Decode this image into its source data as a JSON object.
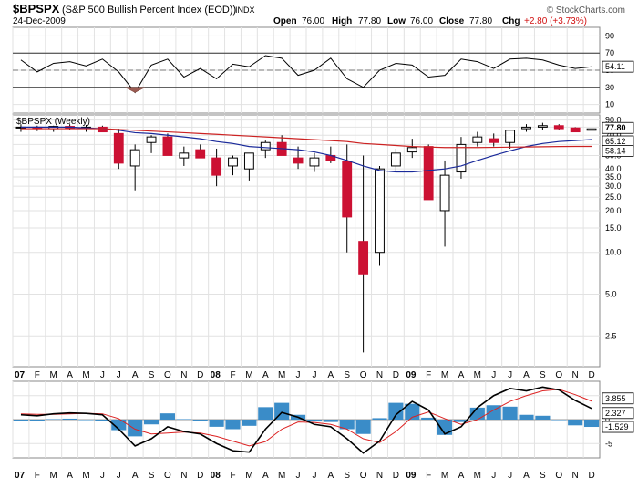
{
  "header": {
    "symbol": "$BPSPX",
    "name": "(S&P 500 Bullish Percent Index (EOD))",
    "exchange": "INDX",
    "date": "24-Dec-2009",
    "watermark": "© StockCharts.com",
    "quote": {
      "open_label": "Open",
      "open": "76.00",
      "high_label": "High",
      "high": "77.80",
      "low_label": "Low",
      "low": "76.00",
      "close_label": "Close",
      "close": "77.80",
      "chg_label": "Chg",
      "chg": "+2.80 (+3.73%)",
      "chg_color": "#d11010"
    }
  },
  "colors": {
    "up_candle": "#ffffff",
    "down_candle": "#cc1133",
    "ma_long": "#cc2222",
    "ma_short": "#1a2a9a",
    "macd_line": "#000000",
    "signal_line": "#dd2222",
    "histogram": "#3a8cc8"
  },
  "chart_data": [
    {
      "type": "line",
      "panel": "indicator",
      "yticks": [
        10,
        30,
        50,
        70,
        90
      ],
      "ylim": [
        0,
        100
      ],
      "reference_lines": [
        30,
        70
      ],
      "current_label": "54.11",
      "x": [
        "2007-01",
        "2007-02",
        "2007-03",
        "2007-04",
        "2007-05",
        "2007-06",
        "2007-07",
        "2007-08",
        "2007-09",
        "2007-10",
        "2007-11",
        "2007-12",
        "2008-01",
        "2008-02",
        "2008-03",
        "2008-04",
        "2008-05",
        "2008-06",
        "2008-07",
        "2008-08",
        "2008-09",
        "2008-10",
        "2008-11",
        "2008-12",
        "2009-01",
        "2009-02",
        "2009-03",
        "2009-04",
        "2009-05",
        "2009-06",
        "2009-07",
        "2009-08",
        "2009-09",
        "2009-10",
        "2009-11",
        "2009-12"
      ],
      "values": [
        62,
        48,
        58,
        60,
        55,
        63,
        48,
        24,
        56,
        63,
        42,
        52,
        40,
        57,
        54,
        67,
        64,
        44,
        50,
        64,
        40,
        30,
        50,
        58,
        56,
        42,
        44,
        63,
        60,
        52,
        63,
        64,
        62,
        56,
        52,
        54
      ]
    },
    {
      "type": "candlestick",
      "panel": "price",
      "title": "$BPSPX (Weekly)",
      "scale": "log",
      "yticks": [
        2.5,
        5.0,
        10.0,
        15.0,
        20.0,
        25.0,
        30.0,
        35.0,
        40.0,
        50.0,
        60.0,
        70.0,
        80.0,
        90.0
      ],
      "ylim": [
        1.5,
        98
      ],
      "price_labels": [
        "77.80",
        "65.12",
        "58.14"
      ],
      "x_labels": [
        "07",
        "F",
        "M",
        "A",
        "M",
        "J",
        "J",
        "A",
        "S",
        "O",
        "N",
        "D",
        "08",
        "F",
        "M",
        "A",
        "M",
        "J",
        "J",
        "A",
        "S",
        "O",
        "N",
        "D",
        "09",
        "F",
        "M",
        "A",
        "M",
        "J",
        "J",
        "A",
        "S",
        "O",
        "N",
        "D"
      ],
      "x": [
        "2007-01",
        "2007-02",
        "2007-03",
        "2007-04",
        "2007-05",
        "2007-06",
        "2007-07",
        "2007-08",
        "2007-09",
        "2007-10",
        "2007-11",
        "2007-12",
        "2008-01",
        "2008-02",
        "2008-03",
        "2008-04",
        "2008-05",
        "2008-06",
        "2008-07",
        "2008-08",
        "2008-09",
        "2008-10",
        "2008-11",
        "2008-12",
        "2009-01",
        "2009-02",
        "2009-03",
        "2009-04",
        "2009-05",
        "2009-06",
        "2009-07",
        "2009-08",
        "2009-09",
        "2009-10",
        "2009-11",
        "2009-12"
      ],
      "series": [
        {
          "name": "open",
          "values": [
            79,
            80,
            78,
            81,
            79,
            80,
            72,
            42,
            62,
            68,
            48,
            55,
            48,
            42,
            40,
            55,
            62,
            48,
            42,
            50,
            45,
            12,
            10,
            42,
            53,
            58,
            20,
            38,
            62,
            66,
            62,
            78,
            80,
            82,
            79,
            76
          ]
        },
        {
          "name": "high",
          "values": [
            84,
            82,
            82,
            84,
            83,
            82,
            78,
            60,
            70,
            72,
            58,
            60,
            56,
            50,
            52,
            64,
            70,
            58,
            52,
            58,
            60,
            50,
            42,
            56,
            66,
            60,
            46,
            68,
            74,
            72,
            76,
            84,
            86,
            84,
            80,
            77.8
          ]
        },
        {
          "name": "low",
          "values": [
            74,
            75,
            74,
            76,
            74,
            74,
            40,
            28,
            52,
            58,
            42,
            48,
            30,
            36,
            33,
            48,
            54,
            40,
            38,
            44,
            10,
            1.9,
            8,
            38,
            48,
            30,
            11,
            34,
            58,
            58,
            56,
            74,
            76,
            76,
            74,
            76
          ]
        },
        {
          "name": "close",
          "values": [
            80,
            78,
            81,
            79,
            80,
            74,
            44,
            55,
            68,
            50,
            52,
            48,
            36,
            48,
            52,
            62,
            50,
            44,
            48,
            46,
            18,
            7,
            40,
            52,
            57,
            24,
            36,
            60,
            68,
            62,
            76,
            80,
            82,
            78,
            74,
            77.8
          ]
        },
        {
          "name": "",
          "kind": "moving_average",
          "color_key": "ma_short",
          "values": [
            80,
            80,
            80,
            80,
            79,
            78,
            76,
            73,
            72,
            70,
            68,
            66,
            63,
            61,
            58,
            57,
            56,
            55,
            53,
            50,
            46,
            42,
            39,
            38,
            38,
            39,
            40,
            42,
            46,
            50,
            54,
            58,
            61,
            63,
            64,
            65.12
          ]
        },
        {
          "name": "",
          "kind": "moving_average",
          "color_key": "ma_long",
          "values": [
            78,
            78,
            78,
            78,
            78,
            78,
            77,
            76,
            75,
            74,
            73,
            72,
            71,
            70,
            69,
            68,
            67,
            66,
            65,
            64,
            63,
            61,
            60,
            59,
            58,
            57.5,
            57,
            57,
            57,
            57.2,
            57.4,
            57.6,
            57.8,
            58,
            58.1,
            58.14
          ]
        }
      ]
    },
    {
      "type": "line",
      "panel": "macd",
      "ylim": [
        -8,
        8
      ],
      "yticks": [
        5,
        0,
        -5
      ],
      "value_labels": [
        "3.855",
        "2.327",
        "-1.529"
      ],
      "x_labels": [
        "07",
        "F",
        "M",
        "A",
        "M",
        "J",
        "J",
        "A",
        "S",
        "O",
        "N",
        "D",
        "08",
        "F",
        "M",
        "A",
        "M",
        "J",
        "J",
        "A",
        "S",
        "O",
        "N",
        "D",
        "09",
        "F",
        "M",
        "A",
        "M",
        "J",
        "J",
        "A",
        "S",
        "O",
        "N",
        "D"
      ],
      "x": [
        "2007-01",
        "2007-02",
        "2007-03",
        "2007-04",
        "2007-05",
        "2007-06",
        "2007-07",
        "2007-08",
        "2007-09",
        "2007-10",
        "2007-11",
        "2007-12",
        "2008-01",
        "2008-02",
        "2008-03",
        "2008-04",
        "2008-05",
        "2008-06",
        "2008-07",
        "2008-08",
        "2008-09",
        "2008-10",
        "2008-11",
        "2008-12",
        "2009-01",
        "2009-02",
        "2009-03",
        "2009-04",
        "2009-05",
        "2009-06",
        "2009-07",
        "2009-08",
        "2009-09",
        "2009-10",
        "2009-11",
        "2009-12"
      ],
      "series": [
        {
          "name": "",
          "kind": "macd",
          "color_key": "macd_line",
          "values": [
            1.0,
            0.8,
            1.2,
            1.4,
            1.3,
            1.0,
            -2.0,
            -5.5,
            -4.0,
            -1.5,
            -2.5,
            -3.0,
            -5.0,
            -6.5,
            -6.8,
            -2.0,
            1.5,
            0.5,
            -1.0,
            -1.5,
            -4.0,
            -7.0,
            -4.5,
            1.0,
            3.8,
            2.0,
            -3.0,
            -1.5,
            2.5,
            5.0,
            6.5,
            6.0,
            6.8,
            6.2,
            4.0,
            2.327
          ]
        },
        {
          "name": "",
          "kind": "signal",
          "color_key": "signal_line",
          "values": [
            1.2,
            1.1,
            1.1,
            1.2,
            1.3,
            1.2,
            0.2,
            -2.0,
            -3.0,
            -2.8,
            -2.6,
            -2.8,
            -3.5,
            -4.5,
            -5.5,
            -4.6,
            -2.0,
            -0.5,
            -0.6,
            -1.0,
            -2.0,
            -4.0,
            -4.8,
            -2.5,
            0.5,
            1.6,
            0.2,
            -1.0,
            0.0,
            2.0,
            3.8,
            5.0,
            6.0,
            6.3,
            5.2,
            3.855
          ]
        },
        {
          "name": "",
          "kind": "histogram",
          "color_key": "histogram",
          "values": [
            -0.2,
            -0.3,
            0.1,
            0.2,
            0.0,
            -0.2,
            -2.2,
            -3.5,
            -1.0,
            1.3,
            0.1,
            -0.2,
            -1.5,
            -2.0,
            -1.3,
            2.6,
            3.5,
            1.0,
            -0.4,
            -0.5,
            -2.0,
            -3.0,
            0.3,
            3.5,
            3.3,
            0.4,
            -3.2,
            -0.5,
            2.5,
            3.0,
            2.7,
            1.0,
            0.8,
            -0.1,
            -1.2,
            -1.529
          ]
        }
      ]
    }
  ]
}
